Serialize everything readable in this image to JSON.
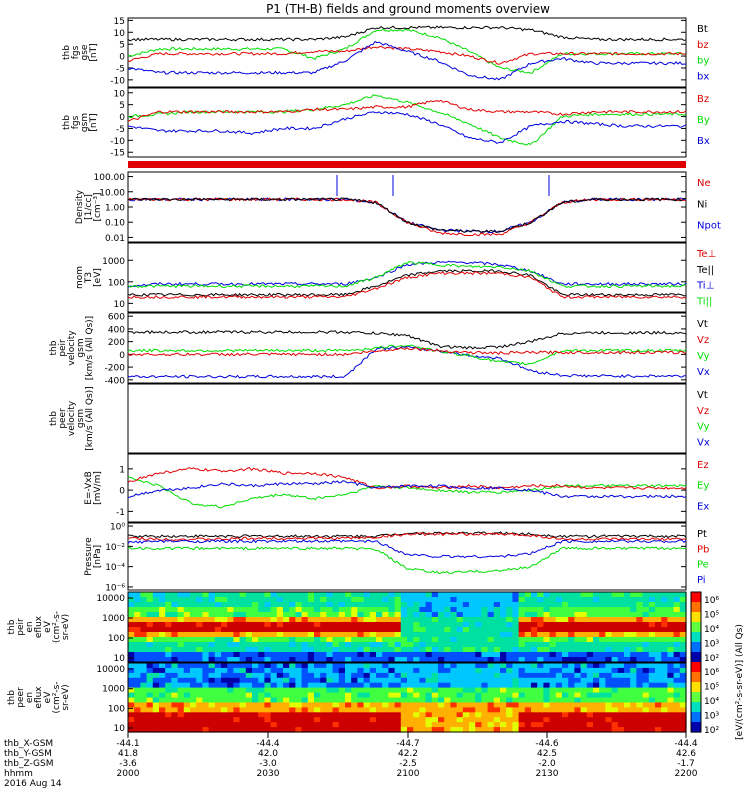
{
  "title": "P1 (TH-B) fields and ground moments overview",
  "colors": {
    "red": "#e00000",
    "green": "#00dd00",
    "blue": "#0000dd",
    "black": "#000000"
  },
  "panels": [
    {
      "id": "p1",
      "ylabel": [
        "thb",
        "fgs",
        "gse",
        "[nT]"
      ],
      "ticks": [
        "15",
        "10",
        "5",
        "0",
        "-5",
        "-10"
      ],
      "tickvals": [
        15,
        10,
        5,
        0,
        -5,
        -10
      ],
      "ylim": [
        -13,
        16
      ],
      "legend": [
        {
          "text": "Bt",
          "color": "black"
        },
        {
          "text": "bz",
          "color": "red"
        },
        {
          "text": "by",
          "color": "green"
        },
        {
          "text": "bx",
          "color": "blue"
        }
      ],
      "series": [
        {
          "color": "green",
          "y": [
            0,
            3,
            3,
            3,
            3,
            3,
            -1,
            3,
            11,
            11,
            8,
            2,
            -5,
            -7,
            1,
            1,
            1,
            1,
            1
          ]
        },
        {
          "color": "red",
          "y": [
            -2,
            1,
            1,
            1,
            1,
            1,
            2,
            2,
            4,
            3,
            2,
            0,
            -3,
            1,
            1,
            1,
            1,
            1,
            1
          ]
        },
        {
          "color": "blue",
          "y": [
            -5,
            -7,
            -7,
            -7,
            -7,
            -7,
            -7,
            -2,
            6,
            2,
            -2,
            -8,
            -10,
            -3,
            -1,
            -3,
            -3,
            -3,
            -3
          ]
        },
        {
          "color": "black",
          "y": [
            7,
            7,
            7,
            7,
            7,
            7,
            7,
            8,
            12,
            12,
            12,
            12,
            12,
            11,
            8,
            7,
            7,
            7,
            7
          ]
        }
      ]
    },
    {
      "id": "p2",
      "ylabel": [
        "thb",
        "fgs",
        "gsm",
        "[nT]"
      ],
      "ticks": [
        "10",
        "5",
        "0",
        "-5",
        "-10",
        "-15"
      ],
      "tickvals": [
        10,
        5,
        0,
        -5,
        -10,
        -15
      ],
      "ylim": [
        -17,
        12
      ],
      "legend": [
        {
          "text": "Bz",
          "color": "red"
        },
        {
          "text": "By",
          "color": "green"
        },
        {
          "text": "Bx",
          "color": "blue"
        }
      ],
      "series": [
        {
          "color": "green",
          "y": [
            0,
            1,
            2,
            2,
            2,
            2,
            3,
            5,
            9,
            6,
            2,
            -3,
            -9,
            -12,
            0,
            1,
            1,
            1,
            1
          ]
        },
        {
          "color": "red",
          "y": [
            -2,
            2,
            2,
            2,
            2,
            2,
            3,
            3,
            4,
            4,
            7,
            3,
            2,
            2,
            1,
            2,
            2,
            2,
            2
          ]
        },
        {
          "color": "blue",
          "y": [
            -4,
            -6,
            -6,
            -6,
            -7,
            -5,
            -5,
            -1,
            2,
            1,
            -3,
            -9,
            -11,
            -4,
            -2,
            -3,
            -4,
            -4,
            -4
          ]
        }
      ]
    },
    {
      "id": "p3",
      "ylabel": [
        "Density",
        "[1/cc]",
        "[cm⁻³]"
      ],
      "ticks": [
        "100.00",
        "10.00",
        "1.00",
        "0.10",
        "0.01"
      ],
      "tickvals": [
        2,
        1,
        0,
        -1,
        -2
      ],
      "ylim": [
        -2.3,
        2.3
      ],
      "legend": [
        {
          "text": "Ne",
          "color": "red"
        },
        {
          "text": "Ni",
          "color": "black"
        },
        {
          "text": "Npot",
          "color": "blue"
        }
      ],
      "series": [
        {
          "color": "blue",
          "y": [
            0.5,
            0.5,
            0.5,
            0.5,
            0.5,
            0.5,
            0.5,
            0.5,
            0.3,
            -1.0,
            -1.5,
            -1.6,
            -1.6,
            -1.0,
            0.3,
            0.5,
            0.5,
            0.5,
            0.5
          ]
        },
        {
          "color": "red",
          "y": [
            0.5,
            0.5,
            0.5,
            0.5,
            0.5,
            0.5,
            0.5,
            0.5,
            0.3,
            -1.0,
            -1.7,
            -1.8,
            -1.8,
            -1.0,
            0.3,
            0.5,
            0.5,
            0.5,
            0.5
          ]
        },
        {
          "color": "black",
          "y": [
            0.5,
            0.5,
            0.5,
            0.5,
            0.5,
            0.5,
            0.5,
            0.5,
            0.3,
            -1.0,
            -1.5,
            -1.6,
            -1.6,
            -1.0,
            0.3,
            0.5,
            0.5,
            0.5,
            0.5
          ]
        }
      ]
    },
    {
      "id": "p4",
      "ylabel": [
        "mom",
        "T3",
        "[eV]"
      ],
      "ticks": [
        "1000",
        "100",
        "10"
      ],
      "tickvals": [
        3,
        2,
        1
      ],
      "ylim": [
        0.6,
        3.8
      ],
      "legend": [
        {
          "text": "Te⊥",
          "color": "red"
        },
        {
          "text": "Te||",
          "color": "black"
        },
        {
          "text": "Ti⊥",
          "color": "blue"
        },
        {
          "text": "Ti||",
          "color": "green"
        }
      ],
      "series": [
        {
          "color": "blue",
          "y": [
            1.8,
            1.9,
            1.9,
            1.9,
            1.9,
            1.9,
            1.9,
            1.9,
            2.2,
            2.8,
            2.9,
            2.9,
            2.8,
            2.5,
            1.9,
            1.9,
            1.9,
            1.9,
            1.9
          ]
        },
        {
          "color": "green",
          "y": [
            1.8,
            1.8,
            1.8,
            1.8,
            1.8,
            1.8,
            1.8,
            1.8,
            2.2,
            2.9,
            2.8,
            2.7,
            2.7,
            2.5,
            1.8,
            1.8,
            1.8,
            1.8,
            1.8
          ]
        },
        {
          "color": "black",
          "y": [
            1.4,
            1.4,
            1.4,
            1.4,
            1.4,
            1.4,
            1.4,
            1.4,
            1.8,
            2.3,
            2.5,
            2.5,
            2.5,
            2.3,
            1.4,
            1.4,
            1.4,
            1.4,
            1.4
          ]
        },
        {
          "color": "red",
          "y": [
            1.3,
            1.3,
            1.3,
            1.3,
            1.3,
            1.3,
            1.3,
            1.3,
            1.7,
            2.2,
            2.4,
            2.4,
            2.4,
            2.2,
            1.3,
            1.3,
            1.3,
            1.3,
            1.3
          ]
        }
      ]
    },
    {
      "id": "p5",
      "ylabel": [
        "thb",
        "peir",
        "velocity",
        "gsm",
        "[km/s (All Qs)]"
      ],
      "ticks": [
        "600",
        "400",
        "200",
        "0",
        "-200",
        "-400"
      ],
      "tickvals": [
        600,
        400,
        200,
        0,
        -200,
        -400
      ],
      "ylim": [
        -450,
        650
      ],
      "legend": [
        {
          "text": "Vt",
          "color": "black"
        },
        {
          "text": "Vz",
          "color": "red"
        },
        {
          "text": "Vy",
          "color": "green"
        },
        {
          "text": "Vx",
          "color": "blue"
        }
      ],
      "series": [
        {
          "color": "blue",
          "y": [
            -350,
            -350,
            -350,
            -350,
            -350,
            -350,
            -350,
            -350,
            90,
            110,
            60,
            -20,
            -60,
            -260,
            -330,
            -340,
            -340,
            -340,
            -340
          ]
        },
        {
          "color": "green",
          "y": [
            60,
            60,
            60,
            60,
            60,
            60,
            60,
            60,
            100,
            150,
            50,
            -20,
            -120,
            -150,
            60,
            60,
            60,
            60,
            60
          ]
        },
        {
          "color": "red",
          "y": [
            0,
            0,
            0,
            0,
            0,
            0,
            0,
            0,
            50,
            100,
            60,
            30,
            20,
            30,
            30,
            30,
            30,
            30,
            30
          ]
        },
        {
          "color": "black",
          "y": [
            350,
            350,
            350,
            350,
            350,
            350,
            350,
            350,
            330,
            300,
            130,
            100,
            120,
            200,
            330,
            340,
            340,
            340,
            340
          ]
        }
      ]
    },
    {
      "id": "p6",
      "ylabel": [
        "thb",
        "peer",
        "velocity",
        "gsm",
        "[km/s (All Qs)]"
      ],
      "ticks": [],
      "tickvals": [],
      "ylim": [
        0,
        1
      ],
      "legend": [
        {
          "text": "Vt",
          "color": "black"
        },
        {
          "text": "Vz",
          "color": "red"
        },
        {
          "text": "Vy",
          "color": "green"
        },
        {
          "text": "Vx",
          "color": "blue"
        }
      ],
      "series": []
    },
    {
      "id": "p7",
      "ylabel": [
        "E=-VxB",
        "[mV/m]"
      ],
      "ticks": [
        "1",
        "0",
        "-1"
      ],
      "tickvals": [
        1,
        0,
        -1
      ],
      "ylim": [
        -1.5,
        1.7
      ],
      "legend": [
        {
          "text": "Ez",
          "color": "red"
        },
        {
          "text": "Ey",
          "color": "green"
        },
        {
          "text": "Ex",
          "color": "blue"
        }
      ],
      "series": [
        {
          "color": "green",
          "y": [
            0.6,
            0.2,
            -0.6,
            -0.8,
            -0.4,
            -0.2,
            -0.4,
            -0.2,
            0.2,
            0.1,
            0,
            -0.1,
            -0.1,
            0,
            0.2,
            0.2,
            0.2,
            0.2,
            0.2
          ]
        },
        {
          "color": "red",
          "y": [
            0.4,
            0.8,
            1.0,
            0.9,
            1.0,
            0.8,
            0.8,
            0.6,
            0.1,
            0.2,
            0.1,
            0.2,
            0.1,
            0.2,
            0.2,
            0.1,
            0.1,
            0.1,
            0.1
          ]
        },
        {
          "color": "blue",
          "y": [
            -0.3,
            0,
            0.1,
            0.3,
            0.2,
            0.3,
            0.3,
            0.4,
            0.1,
            0.2,
            0.2,
            0.1,
            0.1,
            0,
            -0.3,
            -0.3,
            -0.3,
            -0.3,
            -0.3
          ]
        }
      ]
    },
    {
      "id": "p8",
      "ylabel": [
        "Pressure",
        "[nPa]"
      ],
      "ticks": [
        "10⁰",
        "10⁻²",
        "10⁻⁴",
        "10⁻⁶"
      ],
      "tickvals": [
        0,
        -2,
        -4,
        -6
      ],
      "ylim": [
        -6.3,
        0.3
      ],
      "legend": [
        {
          "text": "Pt",
          "color": "black"
        },
        {
          "text": "Pb",
          "color": "red"
        },
        {
          "text": "Pe",
          "color": "green"
        },
        {
          "text": "Pi",
          "color": "blue"
        }
      ],
      "series": [
        {
          "color": "black",
          "y": [
            -1,
            -1,
            -1,
            -1,
            -1,
            -1,
            -1,
            -1,
            -1,
            -0.7,
            -0.7,
            -0.7,
            -0.7,
            -0.8,
            -1,
            -1,
            -1,
            -1,
            -1
          ]
        },
        {
          "color": "red",
          "y": [
            -1.2,
            -1.3,
            -1.3,
            -1.3,
            -1.2,
            -1.2,
            -1.2,
            -1.2,
            -1.1,
            -0.8,
            -0.8,
            -0.8,
            -0.8,
            -0.9,
            -1.3,
            -1.3,
            -1.3,
            -1.3,
            -1.3
          ]
        },
        {
          "color": "blue",
          "y": [
            -1.6,
            -1.5,
            -1.5,
            -1.5,
            -1.5,
            -1.5,
            -1.5,
            -1.5,
            -1.5,
            -2.8,
            -3.0,
            -3.0,
            -3.0,
            -2.7,
            -1.5,
            -1.5,
            -1.5,
            -1.5,
            -1.5
          ]
        },
        {
          "color": "green",
          "y": [
            -2.2,
            -2.2,
            -2.2,
            -2.2,
            -2.2,
            -2.2,
            -2.2,
            -2.2,
            -2.3,
            -4.2,
            -4.6,
            -4.5,
            -4.4,
            -4.0,
            -2.2,
            -2.2,
            -2.2,
            -2.2,
            -2.2
          ]
        }
      ]
    }
  ],
  "spectrograms": [
    {
      "id": "s1",
      "ylabel": [
        "thb",
        "peir",
        "en",
        "eflux",
        "eV",
        "(cm²-s-",
        "sr-eV)"
      ],
      "ticks": [
        "10000",
        "1000",
        "100",
        "10"
      ]
    },
    {
      "id": "s2",
      "ylabel": [
        "thb",
        "peer",
        "en",
        "eflux",
        "eV",
        "(cm²-s-",
        "sr-eV)"
      ],
      "ticks": [
        "10000",
        "1000",
        "100",
        "10"
      ]
    }
  ],
  "colorbar": {
    "ticks": [
      "10⁶",
      "10⁵",
      "10⁴",
      "10³",
      "10²",
      "10⁶",
      "10⁵",
      "10⁴",
      "10³",
      "10²"
    ],
    "label": "[eV/(cm²-s-sr-eV)] (All Qs)"
  },
  "footer": {
    "rows": [
      {
        "label": "thb_X-GSM",
        "values": [
          "-44.1",
          "-44.4",
          "-44.7",
          "-44.6",
          "-44.4"
        ]
      },
      {
        "label": "thb_Y-GSM",
        "values": [
          "41.8",
          "42.0",
          "42.2",
          "42.5",
          "42.6"
        ]
      },
      {
        "label": "thb_Z-GSM",
        "values": [
          "-3.6",
          "-3.0",
          "-2.5",
          "-2.0",
          "-1.7"
        ]
      },
      {
        "label": "hhmm",
        "values": [
          "2000",
          "2030",
          "2100",
          "2130",
          "2200"
        ]
      }
    ],
    "date": "2016 Aug 14"
  },
  "chart_data": {
    "type": "line",
    "title": "P1 (TH-B) fields and ground moments overview",
    "x": [
      "2000",
      "2030",
      "2100",
      "2130",
      "2200"
    ],
    "note_panels": [
      "thb fgs gse [nT]",
      "thb fgs gsm [nT]",
      "Density [1/cc]",
      "mom T3 [eV]",
      "thb peir velocity gsm",
      "thb peer velocity gsm",
      "E=-VxB [mV/m]",
      "Pressure [nPa]",
      "thb peir en eflux",
      "thb peer en eflux"
    ]
  }
}
